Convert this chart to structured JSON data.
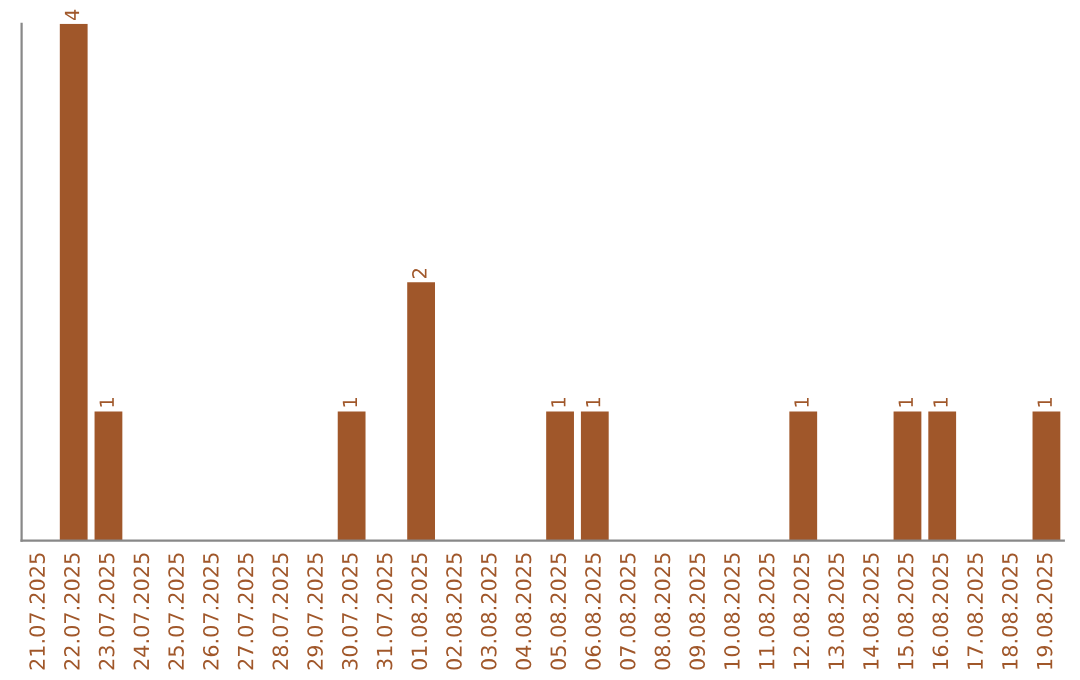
{
  "chart_data": {
    "type": "bar",
    "categories": [
      "21.07.2025",
      "22.07.2025",
      "23.07.2025",
      "24.07.2025",
      "25.07.2025",
      "26.07.2025",
      "27.07.2025",
      "28.07.2025",
      "29.07.2025",
      "30.07.2025",
      "31.07.2025",
      "01.08.2025",
      "02.08.2025",
      "03.08.2025",
      "04.08.2025",
      "05.08.2025",
      "06.08.2025",
      "07.08.2025",
      "08.08.2025",
      "09.08.2025",
      "10.08.2025",
      "11.08.2025",
      "12.08.2025",
      "13.08.2025",
      "14.08.2025",
      "15.08.2025",
      "16.08.2025",
      "17.08.2025",
      "18.08.2025",
      "19.08.2025"
    ],
    "values": [
      0,
      4,
      1,
      0,
      0,
      0,
      0,
      0,
      0,
      1,
      0,
      2,
      0,
      0,
      0,
      1,
      1,
      0,
      0,
      0,
      0,
      0,
      1,
      0,
      0,
      1,
      1,
      0,
      0,
      1
    ],
    "value_labels": [
      null,
      "4",
      "1",
      null,
      null,
      null,
      null,
      null,
      null,
      "1",
      null,
      "2",
      null,
      null,
      null,
      "1",
      "1",
      null,
      null,
      null,
      null,
      null,
      "1",
      null,
      null,
      "1",
      "1",
      null,
      null,
      "1"
    ],
    "color": "#a0572a",
    "ylim": [
      0,
      4
    ],
    "tick_labels": "x",
    "grid": false,
    "legend": false
  }
}
